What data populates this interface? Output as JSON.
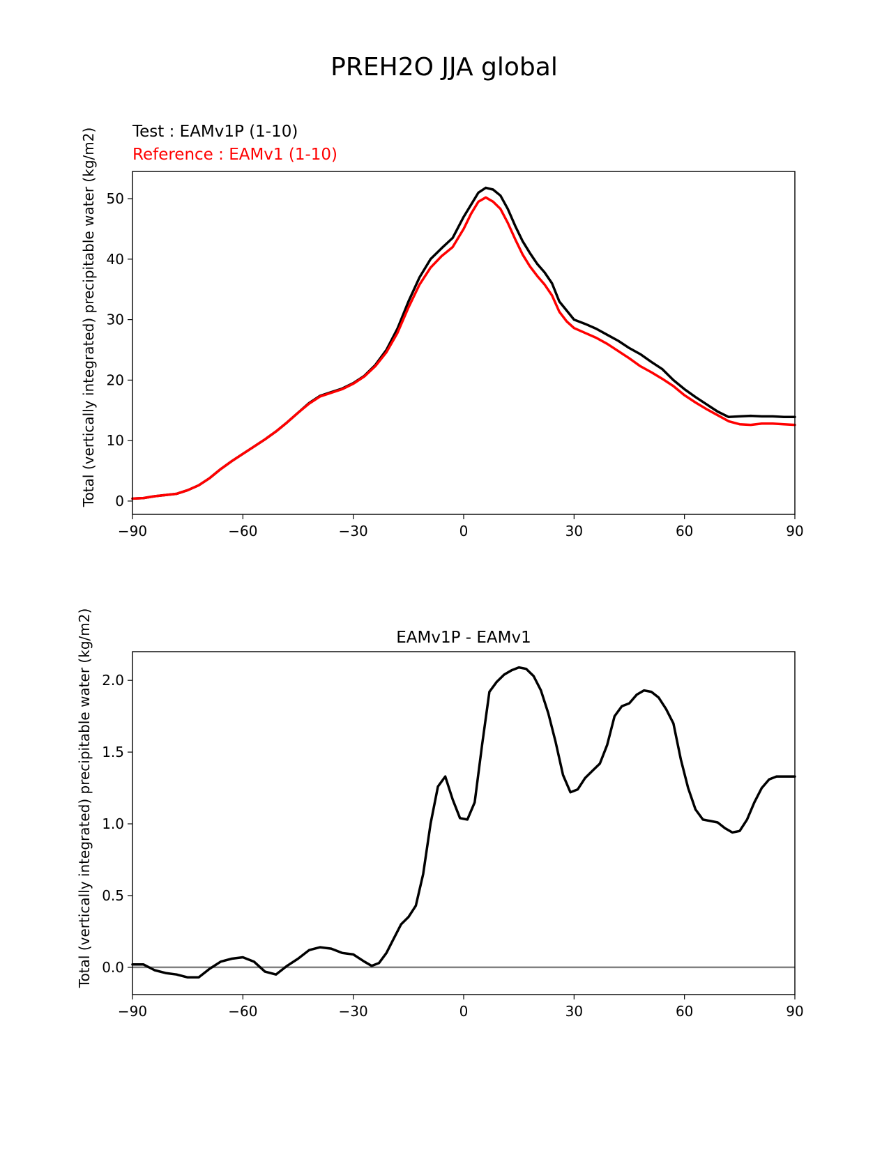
{
  "figure_title": "PREH2O JJA global",
  "chart_data": [
    {
      "type": "line",
      "test_label": "Test : EAMv1P (1-10)",
      "reference_label": "Reference : EAMv1 (1-10)",
      "xlabel": "",
      "ylabel": "Total (vertically integrated) precipitable water (kg/m2)",
      "xlim": [
        -90,
        90
      ],
      "ylim": [
        -2.2,
        54.5
      ],
      "xticks": [
        -90,
        -60,
        -30,
        0,
        30,
        60,
        90
      ],
      "yticks": [
        0,
        10,
        20,
        30,
        40,
        50
      ],
      "grid": false,
      "series": [
        {
          "name": "Test : EAMv1P (1-10)",
          "color": "#000000",
          "x": [
            -90,
            -87,
            -84,
            -81,
            -78,
            -75,
            -72,
            -69,
            -66,
            -63,
            -60,
            -57,
            -54,
            -51,
            -48,
            -45,
            -42,
            -39,
            -36,
            -33,
            -30,
            -27,
            -24,
            -21,
            -18,
            -15,
            -12,
            -9,
            -6,
            -3,
            0,
            2,
            4,
            6,
            8,
            10,
            12,
            14,
            16,
            18,
            20,
            22,
            24,
            26,
            28,
            30,
            33,
            36,
            39,
            42,
            45,
            48,
            51,
            54,
            57,
            60,
            63,
            66,
            69,
            72,
            75,
            78,
            81,
            84,
            87,
            90
          ],
          "y": [
            0.4,
            0.5,
            0.8,
            1.0,
            1.2,
            1.8,
            2.6,
            3.8,
            5.3,
            6.6,
            7.8,
            9.0,
            10.2,
            11.5,
            13.0,
            14.6,
            16.2,
            17.4,
            18.0,
            18.6,
            19.5,
            20.7,
            22.5,
            25.0,
            28.5,
            33.0,
            37.0,
            40.0,
            41.8,
            43.5,
            47.0,
            49.0,
            51.0,
            51.8,
            51.5,
            50.5,
            48.3,
            45.5,
            43.0,
            41.0,
            39.2,
            37.8,
            36.0,
            33.0,
            31.5,
            30.0,
            29.3,
            28.5,
            27.5,
            26.5,
            25.3,
            24.3,
            23.0,
            21.8,
            20.0,
            18.5,
            17.2,
            16.0,
            14.8,
            13.9,
            14.0,
            14.1,
            14.0,
            14.0,
            13.9,
            13.9
          ]
        },
        {
          "name": "Reference : EAMv1 (1-10)",
          "color": "#ff0000",
          "x": [
            -90,
            -87,
            -84,
            -81,
            -78,
            -75,
            -72,
            -69,
            -66,
            -63,
            -60,
            -57,
            -54,
            -51,
            -48,
            -45,
            -42,
            -39,
            -36,
            -33,
            -30,
            -27,
            -24,
            -21,
            -18,
            -15,
            -12,
            -9,
            -6,
            -3,
            0,
            2,
            4,
            6,
            8,
            10,
            12,
            14,
            16,
            18,
            20,
            22,
            24,
            26,
            28,
            30,
            33,
            36,
            39,
            42,
            45,
            48,
            51,
            54,
            57,
            60,
            63,
            66,
            69,
            72,
            75,
            78,
            81,
            84,
            87,
            90
          ],
          "y": [
            0.4,
            0.5,
            0.8,
            1.0,
            1.2,
            1.8,
            2.6,
            3.8,
            5.3,
            6.6,
            7.8,
            9.0,
            10.2,
            11.5,
            13.0,
            14.6,
            16.1,
            17.3,
            17.9,
            18.5,
            19.4,
            20.6,
            22.3,
            24.6,
            27.8,
            32.0,
            35.8,
            38.6,
            40.5,
            42.0,
            45.0,
            47.5,
            49.5,
            50.2,
            49.5,
            48.3,
            46.0,
            43.3,
            40.8,
            38.8,
            37.2,
            35.8,
            34.0,
            31.3,
            29.7,
            28.6,
            27.8,
            27.0,
            26.0,
            24.8,
            23.6,
            22.3,
            21.3,
            20.2,
            19.0,
            17.5,
            16.3,
            15.2,
            14.2,
            13.2,
            12.7,
            12.6,
            12.8,
            12.8,
            12.7,
            12.6
          ]
        }
      ]
    },
    {
      "type": "line",
      "title": "EAMv1P - EAMv1",
      "xlabel": "",
      "ylabel": "Total (vertically integrated) precipitable water (kg/m2)",
      "xlim": [
        -90,
        90
      ],
      "ylim": [
        -0.19,
        2.2
      ],
      "xticks": [
        -90,
        -60,
        -30,
        0,
        30,
        60,
        90
      ],
      "yticks": [
        0.0,
        0.5,
        1.0,
        1.5,
        2.0
      ],
      "grid": false,
      "zero_line_color": "#808080",
      "series": [
        {
          "name": "EAMv1P - EAMv1",
          "color": "#000000",
          "x": [
            -90,
            -87,
            -84,
            -81,
            -78,
            -75,
            -72,
            -69,
            -66,
            -63,
            -60,
            -57,
            -54,
            -51,
            -48,
            -45,
            -42,
            -39,
            -36,
            -33,
            -30,
            -27,
            -25,
            -23,
            -21,
            -19,
            -17,
            -15,
            -13,
            -11,
            -9,
            -7,
            -5,
            -3,
            -1,
            1,
            3,
            5,
            7,
            9,
            11,
            13,
            15,
            17,
            19,
            21,
            23,
            25,
            27,
            29,
            31,
            33,
            35,
            37,
            39,
            41,
            43,
            45,
            47,
            49,
            51,
            53,
            55,
            57,
            59,
            61,
            63,
            65,
            67,
            69,
            71,
            73,
            75,
            77,
            79,
            81,
            83,
            85,
            87,
            89,
            90
          ],
          "y": [
            0.02,
            0.02,
            -0.02,
            -0.04,
            -0.05,
            -0.07,
            -0.07,
            -0.01,
            0.04,
            0.06,
            0.07,
            0.04,
            -0.03,
            -0.05,
            0.01,
            0.06,
            0.12,
            0.14,
            0.13,
            0.1,
            0.09,
            0.04,
            0.01,
            0.03,
            0.1,
            0.2,
            0.3,
            0.35,
            0.43,
            0.65,
            1.0,
            1.26,
            1.33,
            1.17,
            1.04,
            1.03,
            1.15,
            1.55,
            1.92,
            1.99,
            2.04,
            2.07,
            2.09,
            2.08,
            2.03,
            1.93,
            1.77,
            1.57,
            1.34,
            1.22,
            1.24,
            1.32,
            1.37,
            1.42,
            1.55,
            1.75,
            1.82,
            1.84,
            1.9,
            1.93,
            1.92,
            1.88,
            1.8,
            1.7,
            1.45,
            1.25,
            1.1,
            1.03,
            1.02,
            1.01,
            0.97,
            0.94,
            0.95,
            1.03,
            1.15,
            1.25,
            1.31,
            1.33,
            1.33,
            1.33,
            1.33
          ]
        }
      ]
    }
  ]
}
